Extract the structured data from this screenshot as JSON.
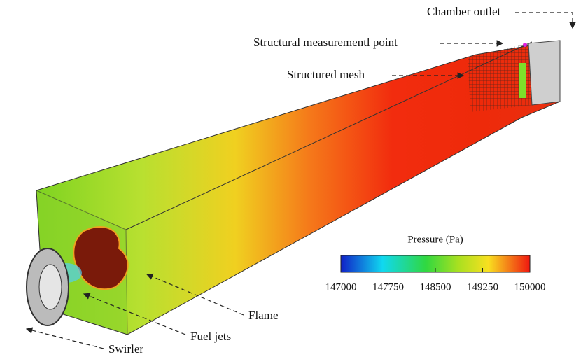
{
  "annotations": {
    "chamber_outlet": "Chamber outlet",
    "measurement_point": "Structural measurementl point",
    "structured_mesh": "Structured mesh",
    "flame": "Flame",
    "fuel_jets": "Fuel jets",
    "swirler": "Swirler"
  },
  "colorbar": {
    "title": "Pressure (Pa)",
    "lim": [
      147000,
      150000
    ],
    "ticks": [
      147000,
      147750,
      148500,
      149250,
      150000
    ]
  }
}
